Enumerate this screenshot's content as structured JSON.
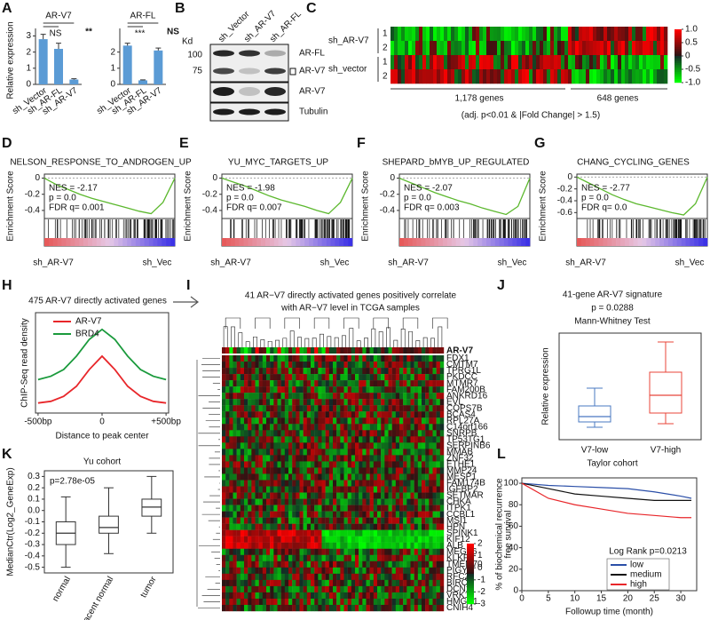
{
  "panels": {
    "A": {
      "label": "A",
      "ylabel": "Relative expression",
      "charts": [
        {
          "type": "bar",
          "title": "AR-V7",
          "categories": [
            "sh_Vector",
            "sh_AR-FL",
            "sh_AR-V7"
          ],
          "values": [
            2.8,
            2.2,
            0.3
          ],
          "errors": [
            0.3,
            0.35,
            0.05
          ],
          "color": "#5b9bd5",
          "ylim": [
            0,
            3.3
          ],
          "yticks": [
            0,
            1,
            2,
            3
          ],
          "significance": [
            "NS",
            "**"
          ]
        },
        {
          "type": "bar",
          "title": "AR-FL",
          "categories": [
            "sh_Vector",
            "sh_AR-FL",
            "sh_AR-V7"
          ],
          "values": [
            2.4,
            0.25,
            2.1
          ],
          "errors": [
            0.15,
            0.03,
            0.15
          ],
          "color": "#5b9bd5",
          "ylim": [
            0,
            3.3
          ],
          "yticks": [
            0,
            1,
            2
          ],
          "significance": [
            "***",
            "NS"
          ]
        }
      ]
    },
    "B": {
      "label": "B",
      "kd": "Kd",
      "markers": [
        "100",
        "75"
      ],
      "lanes": [
        "sh_Vector",
        "sh_AR-V7",
        "sh_AR-FL"
      ],
      "bands": [
        "AR-FL",
        "AR-V7",
        "AR-V7",
        "Tubulin"
      ]
    },
    "C": {
      "label": "C",
      "groups": [
        "sh_AR-V7",
        "sh_vector"
      ],
      "replicates": [
        "1",
        "2",
        "1",
        "2"
      ],
      "gene_groups": [
        "1,178 genes",
        "648 genes"
      ],
      "note": "(adj. p<0.01 & |Fold Change| > 1.5)",
      "colorbar_ticks": [
        {
          "value": 1,
          "label": "1.0"
        },
        0.5,
        0,
        -0.5,
        {
          "value": -1,
          "label": "-1.0"
        }
      ]
    },
    "gsea": [
      {
        "label": "D",
        "title": "NELSON_RESPONSE_TO_ANDROGEN_UP",
        "nes": "NES = -2.17",
        "p": "p = 0.0",
        "fdr": "FDR q= 0.001",
        "ylabel": "Enrichment Score",
        "xlabels": [
          "sh_AR-V7",
          "sh_Vec"
        ],
        "ylim": [
          -0.5,
          0.05
        ],
        "yticks": [
          0,
          -0.2,
          -0.4
        ],
        "curve": [
          0,
          -0.08,
          -0.14,
          -0.2,
          -0.25,
          -0.29,
          -0.33,
          -0.37,
          -0.41,
          -0.44,
          -0.3,
          0
        ]
      },
      {
        "label": "E",
        "title": "YU_MYC_TARGETS_UP",
        "nes": "NES = -1.98",
        "p": "p = 0.0",
        "fdr": "FDR q= 0.007",
        "ylabel": "Enrichment Score",
        "xlabels": [
          "sh_AR-V7",
          "sh_Vec"
        ],
        "ylim": [
          -0.5,
          0.05
        ],
        "yticks": [
          0,
          -0.2,
          -0.4
        ],
        "curve": [
          0,
          -0.05,
          -0.1,
          -0.16,
          -0.22,
          -0.27,
          -0.31,
          -0.35,
          -0.4,
          -0.44,
          -0.3,
          0
        ]
      },
      {
        "label": "F",
        "title": "SHEPARD_bMYB_UP_REGULATED",
        "nes": "NES = -2.07",
        "p": "p = 0.0",
        "fdr": "FDR q= 0.003",
        "ylabel": "Enrichment Score",
        "xlabels": [
          "sh_AR-V7",
          "sh_Vec"
        ],
        "ylim": [
          -0.5,
          0.05
        ],
        "yticks": [
          0,
          -0.2,
          -0.4
        ],
        "curve": [
          0,
          -0.06,
          -0.12,
          -0.18,
          -0.23,
          -0.28,
          -0.32,
          -0.37,
          -0.41,
          -0.45,
          -0.35,
          0
        ]
      },
      {
        "label": "G",
        "title": "CHANG_CYCLING_GENES",
        "nes": "NES = -2.77",
        "p": "p = 0.0",
        "fdr": "FDR q= 0.0",
        "ylabel": "Enrichment Score",
        "xlabels": [
          "sh_AR-V7",
          "sh_Vec"
        ],
        "ylim": [
          -0.7,
          0.05
        ],
        "yticks": [
          0,
          -0.2,
          -0.4,
          -0.6
        ],
        "curve": [
          0,
          -0.1,
          -0.2,
          -0.3,
          -0.38,
          -0.45,
          -0.5,
          -0.55,
          -0.6,
          -0.64,
          -0.45,
          0
        ]
      }
    ],
    "H": {
      "label": "H",
      "type": "line",
      "title": "475 AR-V7 directly activated genes",
      "ylabel": "ChIP-Seq read density",
      "xlabel": "Distance to peak center",
      "x": [
        -500,
        -400,
        -300,
        -200,
        -100,
        0,
        100,
        200,
        300,
        400,
        500
      ],
      "xlim": [
        -520,
        520
      ],
      "xticks": [
        {
          "value": -500,
          "label": "-500bp"
        },
        0,
        {
          "value": 500,
          "label": "+500bp"
        }
      ],
      "ylim": [
        0,
        30
      ],
      "series": [
        {
          "name": "AR-V7",
          "color": "#e8262a",
          "values": [
            3,
            3.5,
            5,
            8,
            13,
            17,
            13,
            8,
            5,
            3.5,
            3
          ]
        },
        {
          "name": "BRD4",
          "color": "#1a9a3c",
          "values": [
            10,
            11,
            13,
            17,
            22,
            25,
            22,
            17,
            13,
            11,
            10
          ]
        }
      ]
    },
    "I": {
      "label": "I",
      "title": [
        "41 AR−V7 directly activated genes positively correlate",
        "with AR−V7 level in TCGA samples"
      ],
      "annotation": "AR-V7",
      "genes": [
        "FDX1",
        "CMTM7",
        "TPRG1L",
        "PKDCC",
        "MTMR7",
        "FAM200B",
        "ANKRD16",
        "EVL",
        "COPS7B",
        "BCAS4",
        "RPL27A",
        "C14orf166",
        "SNRPB",
        "TP53TG1",
        "SERPINB6",
        "MMAB",
        "ZNF32",
        "ETHE1",
        "MMP24",
        "MESP1",
        "FAM174B",
        "IGFBP2",
        "SETMAR",
        "CHKA",
        "ITPK1",
        "CCBL1",
        "MSI1",
        "HPN",
        "SPINK1",
        "KIF12",
        "ALB",
        "MEGF6",
        "KLKP1",
        "TMEM70",
        "PIGY",
        "RFC2",
        "BIRC5",
        "DCN1",
        "VRK1",
        "HMGB1",
        "CNIH4"
      ],
      "colorbar_ticks": [
        2,
        1,
        0,
        -1,
        -2,
        -3
      ]
    },
    "J": {
      "label": "J",
      "type": "box",
      "title": "41-gene AR-V7 signature",
      "pvalue": "p = 0.0288",
      "test": "Mann-Whitney Test",
      "ylabel": "Relative expression",
      "categories": [
        "V7-low",
        "V7-high"
      ],
      "colors": [
        "#4a78c2",
        "#e8463a"
      ],
      "ylim": [
        5,
        65
      ],
      "boxes": [
        {
          "min": 12,
          "q1": 15,
          "median": 18,
          "q3": 24,
          "max": 34
        },
        {
          "min": 14,
          "q1": 20,
          "median": 30,
          "q3": 43,
          "max": 60
        }
      ]
    },
    "K": {
      "label": "K",
      "type": "box",
      "title": "Yu cohort",
      "pvalue": "p=2.78e-05",
      "ylabel": "MedianCtr(Log2_GeneExp)",
      "categories": [
        "normal",
        "adjacent normal",
        "tumor"
      ],
      "ylim": [
        -0.55,
        0.35
      ],
      "yticks": [
        0.3,
        0.2,
        0.1,
        {
          "value": 0,
          "label": "0.0"
        },
        -0.1,
        -0.2,
        -0.3,
        -0.4,
        -0.5
      ],
      "boxes": [
        {
          "min": -0.5,
          "q1": -0.3,
          "median": -0.2,
          "q3": -0.1,
          "max": 0.12
        },
        {
          "min": -0.38,
          "q1": -0.2,
          "median": -0.15,
          "q3": -0.05,
          "max": 0.2
        },
        {
          "min": -0.2,
          "q1": -0.05,
          "median": 0.03,
          "q3": 0.1,
          "max": 0.3
        }
      ]
    },
    "L": {
      "label": "L",
      "type": "line",
      "title": "Taylor cohort",
      "ylabel": [
        "% of biochemical recurrence",
        "free survival"
      ],
      "xlabel": "Followup time (month)",
      "legend_title": "Log Rank p=0.0213",
      "x": [
        0,
        5,
        10,
        15,
        20,
        25,
        30,
        32
      ],
      "xlim": [
        0,
        33
      ],
      "xticks": [
        0,
        5,
        10,
        15,
        20,
        25,
        30
      ],
      "ylim": [
        0,
        105
      ],
      "yticks": [
        0,
        20,
        40,
        60,
        80,
        100
      ],
      "series": [
        {
          "name": "low",
          "color": "#2b4fa8",
          "values": [
            100,
            98,
            97,
            96,
            95,
            92,
            88,
            86
          ]
        },
        {
          "name": "medium",
          "color": "#111111",
          "values": [
            100,
            95,
            90,
            88,
            86,
            84,
            84,
            84
          ]
        },
        {
          "name": "high",
          "color": "#e8262a",
          "values": [
            100,
            86,
            80,
            76,
            72,
            70,
            68,
            68
          ]
        }
      ]
    }
  }
}
